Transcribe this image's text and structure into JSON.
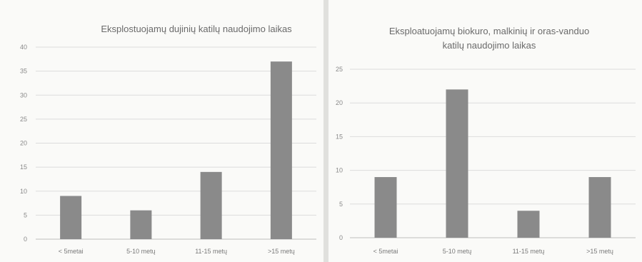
{
  "chart_data": [
    {
      "type": "bar",
      "title": [
        "Eksplostuojamų dujinių katilų naudojimo laikas"
      ],
      "categories": [
        "< 5metai",
        "5-10 metų",
        "11-15 metų",
        ">15 metų"
      ],
      "values": [
        9,
        6,
        14,
        37
      ],
      "yticks": [
        "0",
        "5",
        "10",
        "15",
        "20",
        "25",
        "30",
        "35",
        "40"
      ],
      "ylim": [
        0,
        40
      ],
      "grid": true,
      "bar_color": "#8a8a8a"
    },
    {
      "type": "bar",
      "title": [
        "Eksploatuojamų biokuro, malkinių ir oras-vanduo",
        "katilų naudojimo laikas"
      ],
      "categories": [
        "< 5metai",
        "5-10 metų",
        "11-15 metų",
        ">15 metų"
      ],
      "values": [
        9,
        22,
        4,
        9
      ],
      "yticks": [
        "0",
        "5",
        "10",
        "15",
        "20",
        "25"
      ],
      "ylim": [
        0,
        25
      ],
      "grid": true,
      "bar_color": "#8a8a8a"
    }
  ]
}
